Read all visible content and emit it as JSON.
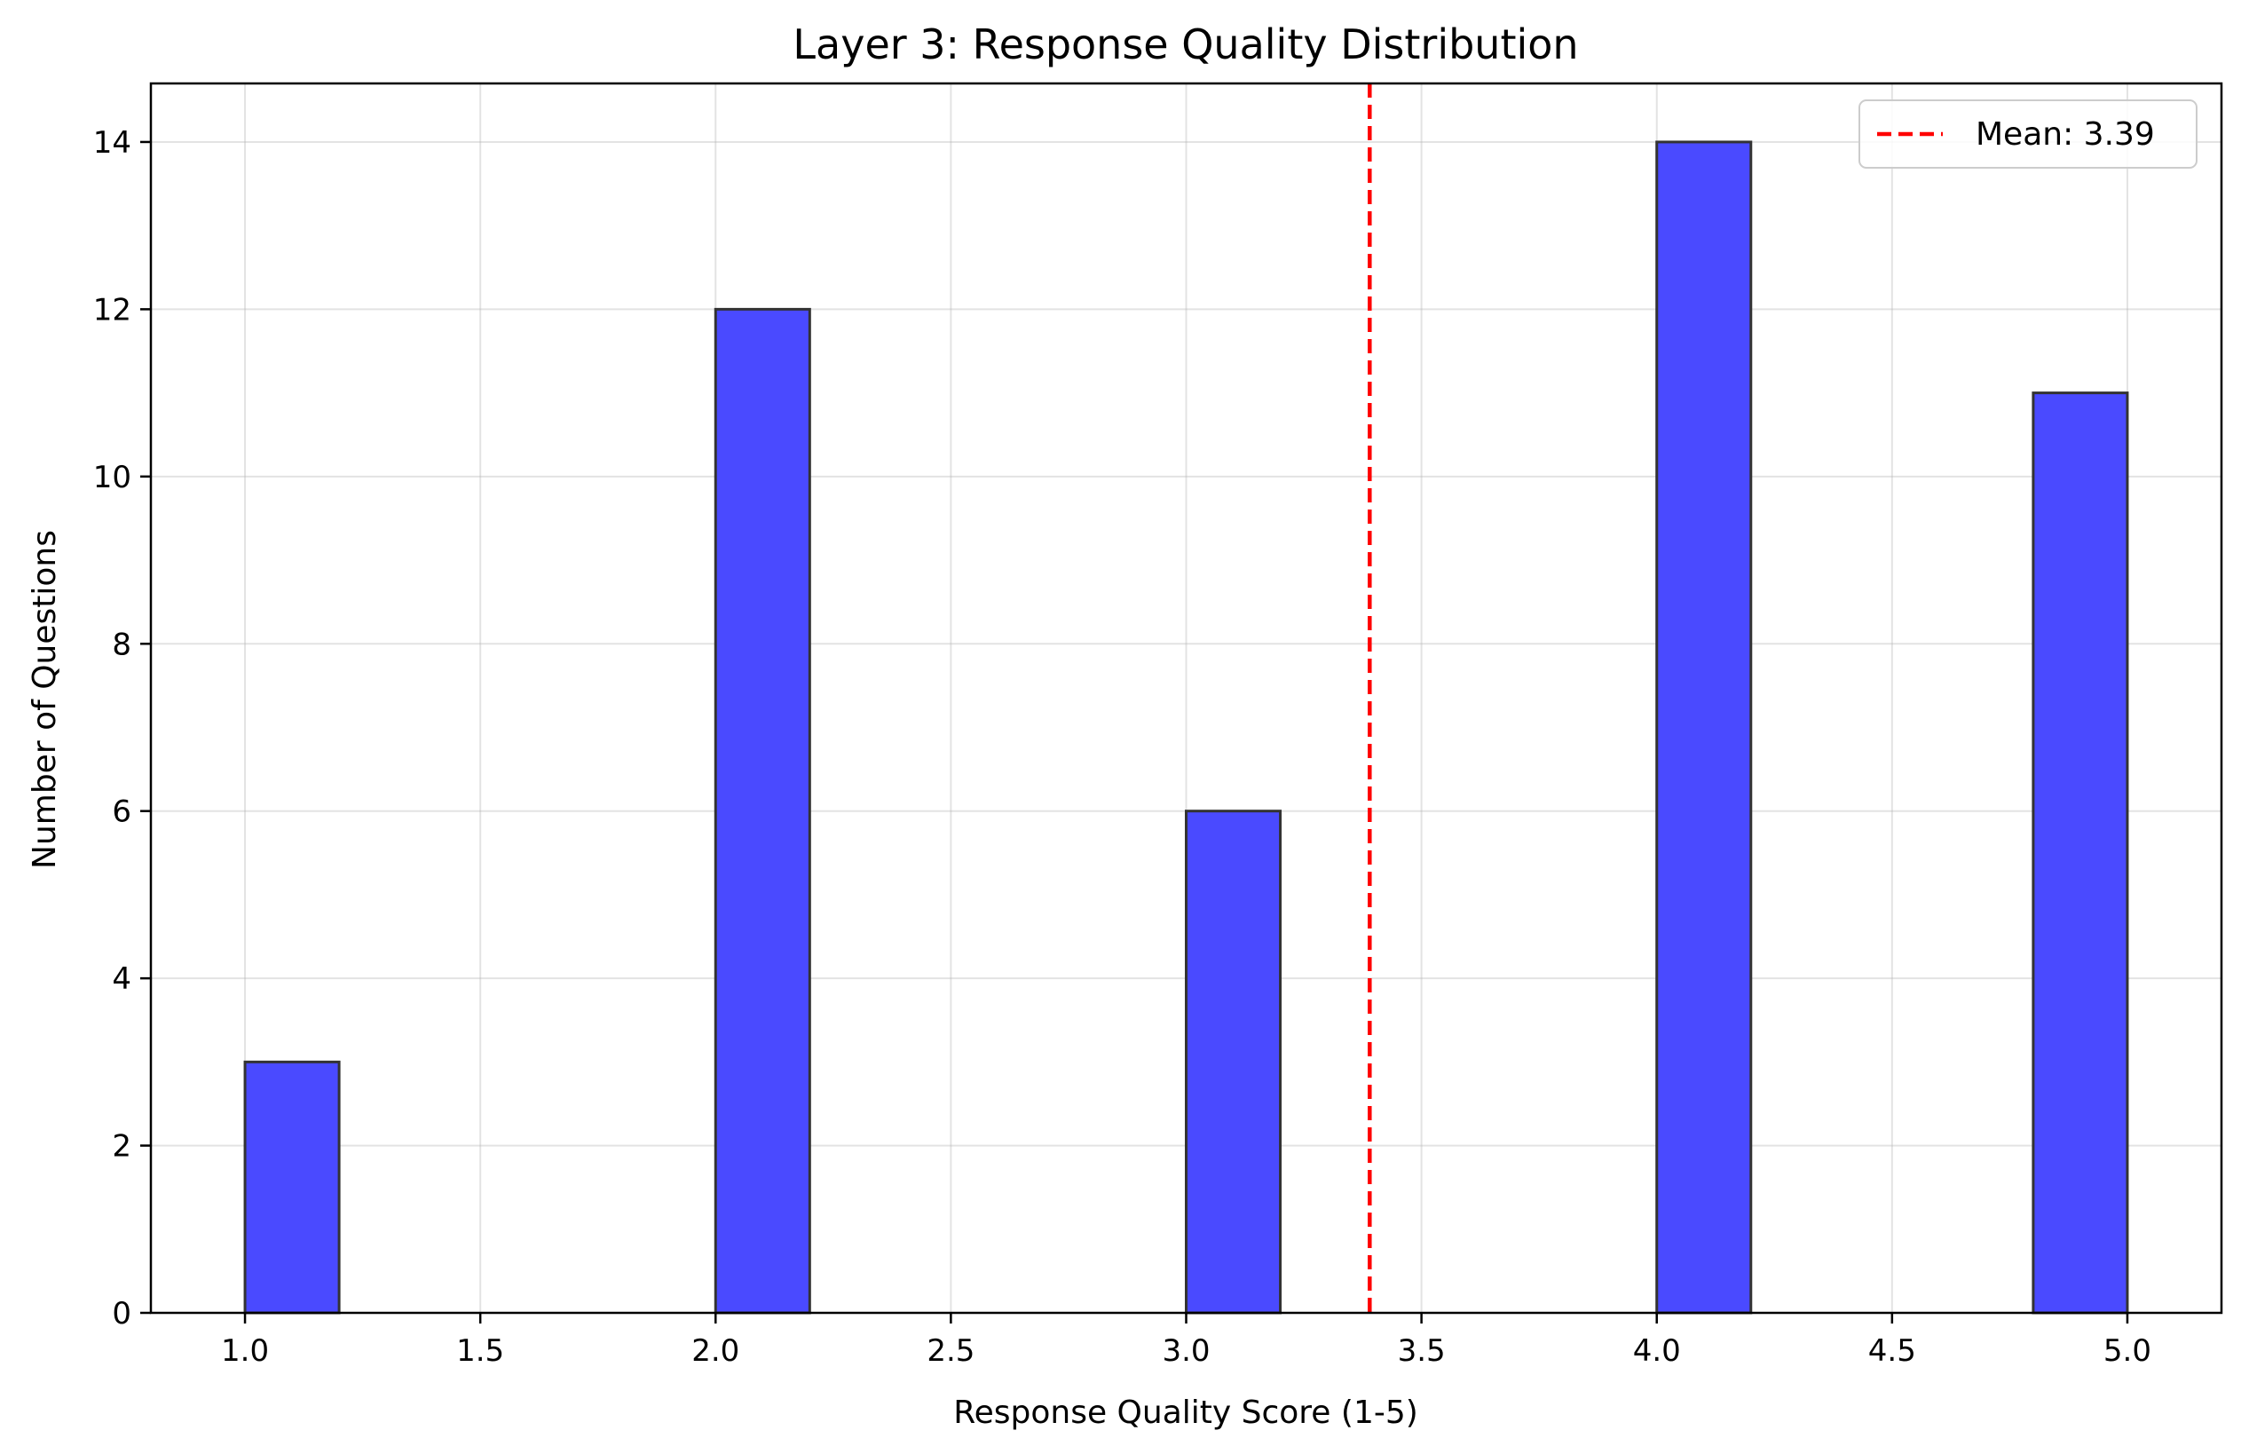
{
  "chart_data": {
    "type": "bar",
    "title": "Layer 3: Response Quality Distribution",
    "xlabel": "Response Quality Score (1-5)",
    "ylabel": "Number of Questions",
    "xlim": [
      0.8,
      5.2
    ],
    "ylim": [
      0,
      14.7
    ],
    "xticks": [
      1.0,
      1.5,
      2.0,
      2.5,
      3.0,
      3.5,
      4.0,
      4.5,
      5.0
    ],
    "xtick_labels": [
      "1.0",
      "1.5",
      "2.0",
      "2.5",
      "3.0",
      "3.5",
      "4.0",
      "4.5",
      "5.0"
    ],
    "yticks": [
      0,
      2,
      4,
      6,
      8,
      10,
      12,
      14
    ],
    "ytick_labels": [
      "0",
      "2",
      "4",
      "6",
      "8",
      "10",
      "12",
      "14"
    ],
    "grid": true,
    "bars": [
      {
        "x_start": 1.0,
        "x_end": 1.2,
        "value": 3
      },
      {
        "x_start": 2.0,
        "x_end": 2.2,
        "value": 12
      },
      {
        "x_start": 3.0,
        "x_end": 3.2,
        "value": 6
      },
      {
        "x_start": 4.0,
        "x_end": 4.2,
        "value": 14
      },
      {
        "x_start": 4.8,
        "x_end": 5.0,
        "value": 11
      }
    ],
    "mean_line": {
      "x": 3.39,
      "label": "Mean: 3.39",
      "color": "#ff0000",
      "style": "dashed"
    },
    "bar_color": "#4a4aff",
    "bar_edge_color": "#333333",
    "legend_position": "top-right"
  }
}
